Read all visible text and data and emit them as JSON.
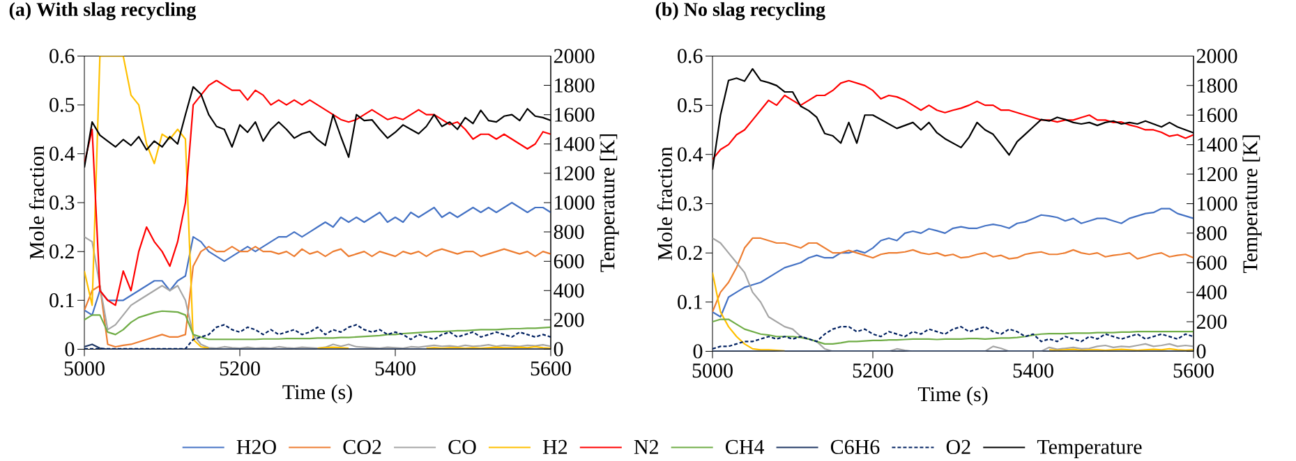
{
  "chart_data": [
    {
      "type": "line",
      "title": "(a) With slag recycling",
      "xlabel": "Time (s)",
      "ylabel": "Mole fraction",
      "y2label": "Temperature [K]",
      "xlim": [
        5000,
        5600
      ],
      "xticks": [
        5000,
        5200,
        5400,
        5600
      ],
      "ylim": [
        0,
        0.6
      ],
      "yticks": [
        0,
        0.1,
        0.2,
        0.3,
        0.4,
        0.5,
        0.6
      ],
      "y2lim": [
        0,
        2000
      ],
      "y2ticks": [
        0,
        200,
        400,
        600,
        800,
        1000,
        1200,
        1400,
        1600,
        1800,
        2000
      ],
      "legend": "bottom",
      "x": [
        5000,
        5010,
        5020,
        5030,
        5040,
        5050,
        5060,
        5070,
        5080,
        5090,
        5100,
        5110,
        5120,
        5130,
        5140,
        5150,
        5160,
        5170,
        5180,
        5190,
        5200,
        5210,
        5220,
        5230,
        5240,
        5250,
        5260,
        5270,
        5280,
        5290,
        5300,
        5310,
        5320,
        5330,
        5340,
        5350,
        5360,
        5370,
        5380,
        5390,
        5400,
        5410,
        5420,
        5430,
        5440,
        5450,
        5460,
        5470,
        5480,
        5490,
        5500,
        5510,
        5520,
        5530,
        5540,
        5550,
        5560,
        5570,
        5580,
        5590,
        5600
      ],
      "series": [
        {
          "name": "H2O",
          "color": "#4472c4",
          "values": [
            0.08,
            0.07,
            0.12,
            0.1,
            0.1,
            0.1,
            0.11,
            0.12,
            0.13,
            0.14,
            0.14,
            0.12,
            0.14,
            0.15,
            0.23,
            0.22,
            0.2,
            0.19,
            0.18,
            0.19,
            0.2,
            0.21,
            0.2,
            0.21,
            0.22,
            0.23,
            0.23,
            0.24,
            0.23,
            0.24,
            0.25,
            0.26,
            0.25,
            0.27,
            0.26,
            0.27,
            0.26,
            0.27,
            0.28,
            0.26,
            0.27,
            0.26,
            0.28,
            0.27,
            0.28,
            0.29,
            0.27,
            0.28,
            0.27,
            0.28,
            0.29,
            0.28,
            0.29,
            0.28,
            0.29,
            0.3,
            0.29,
            0.28,
            0.29,
            0.29,
            0.28
          ]
        },
        {
          "name": "CO2",
          "color": "#ed7d31",
          "values": [
            0.08,
            0.12,
            0.13,
            0.01,
            0.005,
            0.008,
            0.01,
            0.015,
            0.02,
            0.025,
            0.03,
            0.025,
            0.025,
            0.03,
            0.17,
            0.2,
            0.21,
            0.2,
            0.2,
            0.21,
            0.2,
            0.2,
            0.21,
            0.2,
            0.2,
            0.195,
            0.2,
            0.19,
            0.205,
            0.195,
            0.2,
            0.19,
            0.2,
            0.205,
            0.19,
            0.195,
            0.2,
            0.19,
            0.2,
            0.195,
            0.19,
            0.2,
            0.195,
            0.2,
            0.19,
            0.2,
            0.205,
            0.2,
            0.195,
            0.2,
            0.2,
            0.19,
            0.195,
            0.2,
            0.205,
            0.2,
            0.195,
            0.2,
            0.19,
            0.2,
            0.195
          ]
        },
        {
          "name": "CO",
          "color": "#a5a5a5",
          "values": [
            0.23,
            0.22,
            0.13,
            0.04,
            0.05,
            0.07,
            0.09,
            0.1,
            0.11,
            0.12,
            0.13,
            0.12,
            0.13,
            0.1,
            0.03,
            0.01,
            0.003,
            0.002,
            0.005,
            0.003,
            0.002,
            0.004,
            0.002,
            0.003,
            0.002,
            0.005,
            0.003,
            0.002,
            0.004,
            0.003,
            0.002,
            0.004,
            0.01,
            0.006,
            0.01,
            0.005,
            0.004,
            0.003,
            0.002,
            0.004,
            0.003,
            0.002,
            0.005,
            0.004,
            0.006,
            0.008,
            0.006,
            0.007,
            0.005,
            0.008,
            0.006,
            0.007,
            0.009,
            0.006,
            0.008,
            0.007,
            0.006,
            0.008,
            0.007,
            0.009,
            0.006
          ]
        },
        {
          "name": "H2",
          "color": "#ffc000",
          "values": [
            0.16,
            0.09,
            0.6,
            0.6,
            0.6,
            0.6,
            0.52,
            0.5,
            0.42,
            0.38,
            0.44,
            0.43,
            0.45,
            0.43,
            0.02,
            0.005,
            0.002,
            null,
            null,
            null,
            null,
            null,
            null,
            null,
            null,
            null,
            null,
            null,
            null,
            null,
            0.002,
            0.003,
            0.004,
            0.003,
            0.002,
            null,
            null,
            null,
            null,
            null,
            null,
            null,
            null,
            null,
            0.002,
            0.003,
            0.002,
            0.003,
            0.003,
            0.002,
            0.003,
            0.002,
            0.003,
            0.004,
            0.003,
            0.003,
            0.004,
            0.003,
            0.005,
            0.003,
            0.002
          ]
        },
        {
          "name": "N2",
          "color": "#ff0000",
          "values": [
            0.38,
            0.45,
            0.12,
            0.1,
            0.09,
            0.16,
            0.12,
            0.2,
            0.25,
            0.22,
            0.2,
            0.17,
            0.22,
            0.3,
            0.5,
            0.52,
            0.54,
            0.55,
            0.54,
            0.53,
            0.53,
            0.51,
            0.53,
            0.52,
            0.5,
            0.51,
            0.5,
            0.51,
            0.5,
            0.51,
            0.5,
            0.49,
            0.48,
            0.47,
            0.465,
            0.47,
            0.48,
            0.49,
            0.48,
            0.47,
            0.475,
            0.47,
            0.48,
            0.49,
            0.48,
            0.48,
            0.47,
            0.46,
            0.465,
            0.45,
            0.43,
            0.44,
            0.44,
            0.43,
            0.44,
            0.43,
            0.42,
            0.41,
            0.42,
            0.445,
            0.44
          ]
        },
        {
          "name": "CH4",
          "color": "#70ad47",
          "values": [
            0.06,
            0.07,
            0.07,
            0.035,
            0.03,
            0.04,
            0.055,
            0.065,
            0.07,
            0.075,
            0.078,
            0.077,
            0.076,
            0.07,
            0.03,
            0.025,
            0.02,
            0.02,
            0.02,
            0.02,
            0.02,
            0.02,
            0.02,
            0.021,
            0.021,
            0.021,
            0.022,
            0.022,
            0.022,
            0.022,
            0.023,
            0.023,
            0.023,
            0.024,
            0.024,
            0.025,
            0.026,
            0.027,
            0.028,
            0.03,
            0.03,
            0.032,
            0.033,
            0.034,
            0.035,
            0.036,
            0.036,
            0.037,
            0.038,
            0.038,
            0.039,
            0.04,
            0.04,
            0.04,
            0.041,
            0.042,
            0.042,
            0.043,
            0.043,
            0.044,
            0.045
          ]
        },
        {
          "name": "C6H6",
          "color": "#203864",
          "x": [
            5000,
            5010,
            5020,
            5030,
            5100,
            5200,
            5300,
            5400,
            5500,
            5600
          ],
          "values": [
            0.005,
            0.01,
            0.002,
            0,
            0,
            0,
            0,
            0,
            0,
            0
          ]
        },
        {
          "name": "O2",
          "color": "#002060",
          "line_style": "dashed",
          "values": [
            0.001,
            0.001,
            0.001,
            0.001,
            0.001,
            0.001,
            0.001,
            0.001,
            0.001,
            0.001,
            0.001,
            0.001,
            0.001,
            0.001,
            0.02,
            0.025,
            0.03,
            0.045,
            0.05,
            0.04,
            0.035,
            0.045,
            0.04,
            0.03,
            0.04,
            0.03,
            0.035,
            0.04,
            0.03,
            0.035,
            0.045,
            0.03,
            0.04,
            0.035,
            0.045,
            0.05,
            0.04,
            0.035,
            0.04,
            0.03,
            0.035,
            0.03,
            0.02,
            0.03,
            0.025,
            0.02,
            0.03,
            0.035,
            0.025,
            0.03,
            0.035,
            0.025,
            0.03,
            0.035,
            0.03,
            0.025,
            0.035,
            0.03,
            0.025,
            0.03,
            0.025
          ]
        },
        {
          "name": "Temperature",
          "color": "#000000",
          "axis": "y2",
          "values": [
            1240,
            1550,
            1460,
            1420,
            1380,
            1430,
            1390,
            1450,
            1360,
            1420,
            1380,
            1450,
            1400,
            1600,
            1790,
            1740,
            1600,
            1520,
            1500,
            1380,
            1530,
            1480,
            1550,
            1420,
            1500,
            1550,
            1500,
            1440,
            1470,
            1485,
            1430,
            1390,
            1600,
            1450,
            1310,
            1600,
            1560,
            1565,
            1500,
            1440,
            1480,
            1530,
            1500,
            1470,
            1520,
            1600,
            1520,
            1550,
            1500,
            1580,
            1540,
            1630,
            1560,
            1550,
            1590,
            1600,
            1560,
            1640,
            1590,
            1580,
            1560
          ]
        }
      ]
    },
    {
      "type": "line",
      "title": "(b) No slag recycling",
      "xlabel": "Time (s)",
      "ylabel": "Mole fraction",
      "y2label": "Temperature [K]",
      "xlim": [
        5000,
        5600
      ],
      "xticks": [
        5000,
        5200,
        5400,
        5600
      ],
      "ylim": [
        0,
        0.6
      ],
      "yticks": [
        0,
        0.1,
        0.2,
        0.3,
        0.4,
        0.5,
        0.6
      ],
      "y2lim": [
        0,
        2000
      ],
      "y2ticks": [
        0,
        200,
        400,
        600,
        800,
        1000,
        1200,
        1400,
        1600,
        1800,
        2000
      ],
      "x": [
        5000,
        5010,
        5020,
        5030,
        5040,
        5050,
        5060,
        5070,
        5080,
        5090,
        5100,
        5110,
        5120,
        5130,
        5140,
        5150,
        5160,
        5170,
        5180,
        5190,
        5200,
        5210,
        5220,
        5230,
        5240,
        5250,
        5260,
        5270,
        5280,
        5290,
        5300,
        5310,
        5320,
        5330,
        5340,
        5350,
        5360,
        5370,
        5380,
        5390,
        5400,
        5410,
        5420,
        5430,
        5440,
        5450,
        5460,
        5470,
        5480,
        5490,
        5500,
        5510,
        5520,
        5530,
        5540,
        5550,
        5560,
        5570,
        5580,
        5590,
        5600
      ],
      "series": [
        {
          "color": "#4472c4",
          "values": [
            0.08,
            0.07,
            0.11,
            0.12,
            0.13,
            0.135,
            0.14,
            0.15,
            0.16,
            0.17,
            0.175,
            0.18,
            0.19,
            0.195,
            0.19,
            0.19,
            0.2,
            0.2,
            0.205,
            0.2,
            0.21,
            0.225,
            0.23,
            0.225,
            0.24,
            0.244,
            0.24,
            0.249,
            0.245,
            0.24,
            0.25,
            0.253,
            0.25,
            0.25,
            0.255,
            0.258,
            0.255,
            0.25,
            0.26,
            0.263,
            0.27,
            0.277,
            0.275,
            0.272,
            0.265,
            0.27,
            0.26,
            0.265,
            0.27,
            0.27,
            0.265,
            0.26,
            0.27,
            0.275,
            0.28,
            0.282,
            0.29,
            0.29,
            0.28,
            0.275,
            0.27
          ]
        },
        {
          "color": "#ed7d31",
          "values": [
            0.08,
            0.12,
            0.14,
            0.17,
            0.21,
            0.23,
            0.23,
            0.225,
            0.22,
            0.22,
            0.215,
            0.21,
            0.22,
            0.22,
            0.21,
            0.2,
            0.2,
            0.205,
            0.2,
            0.195,
            0.19,
            0.197,
            0.2,
            0.2,
            0.202,
            0.206,
            0.2,
            0.197,
            0.2,
            0.194,
            0.197,
            0.19,
            0.192,
            0.197,
            0.2,
            0.192,
            0.195,
            0.188,
            0.19,
            0.197,
            0.2,
            0.202,
            0.197,
            0.197,
            0.2,
            0.206,
            0.2,
            0.197,
            0.2,
            0.192,
            0.195,
            0.197,
            0.2,
            0.188,
            0.192,
            0.197,
            0.2,
            0.192,
            0.195,
            0.197,
            0.19
          ]
        },
        {
          "color": "#a5a5a5",
          "values": [
            0.23,
            0.22,
            0.2,
            0.18,
            0.16,
            0.12,
            0.1,
            0.07,
            0.06,
            0.05,
            0.045,
            0.03,
            0.025,
            0.02,
            0.005,
            0,
            0,
            0,
            0,
            0,
            0,
            0,
            0,
            0.005,
            0.002,
            0,
            0,
            0,
            0,
            0,
            0,
            0,
            0,
            0,
            0,
            0.01,
            0.006,
            0,
            0,
            0,
            0,
            0,
            0.008,
            0.004,
            0.006,
            0.008,
            0.005,
            0.006,
            0.01,
            0.012,
            0.008,
            0.01,
            0.009,
            0.012,
            0.015,
            0.01,
            0.012,
            0.015,
            0.01,
            0.012,
            0.01
          ]
        },
        {
          "color": "#ffc000",
          "values": [
            0.16,
            0.08,
            0.05,
            0.03,
            0.015,
            0.005,
            0.003,
            0.003,
            0.002,
            0.001,
            null,
            null,
            null,
            null,
            null,
            null,
            null,
            null,
            null,
            null,
            null,
            null,
            null,
            null,
            null,
            null,
            null,
            null,
            null,
            null,
            null,
            null,
            null,
            null,
            null,
            null,
            null,
            null,
            null,
            null,
            null,
            null,
            0.003,
            0.002,
            0.003,
            0.004,
            0.002,
            0.003,
            0.003,
            0.002,
            0.003,
            0.004,
            0.003,
            0.002,
            0.003,
            0.004,
            0.003,
            0.005,
            0.003,
            0.002,
            0.003
          ]
        },
        {
          "color": "#ff0000",
          "values": [
            0.39,
            0.41,
            0.42,
            0.44,
            0.45,
            0.47,
            0.49,
            0.51,
            0.5,
            0.52,
            0.51,
            0.5,
            0.51,
            0.52,
            0.52,
            0.53,
            0.545,
            0.55,
            0.545,
            0.54,
            0.53,
            0.513,
            0.52,
            0.517,
            0.51,
            0.5,
            0.49,
            0.5,
            0.49,
            0.485,
            0.49,
            0.494,
            0.5,
            0.508,
            0.5,
            0.5,
            0.49,
            0.49,
            0.485,
            0.48,
            0.475,
            0.47,
            0.47,
            0.466,
            0.47,
            0.47,
            0.475,
            0.48,
            0.47,
            0.47,
            0.465,
            0.466,
            0.46,
            0.456,
            0.45,
            0.45,
            0.445,
            0.437,
            0.44,
            0.433,
            0.44
          ]
        },
        {
          "color": "#70ad47",
          "values": [
            0.06,
            0.065,
            0.065,
            0.055,
            0.045,
            0.04,
            0.035,
            0.033,
            0.03,
            0.03,
            0.03,
            0.028,
            0.025,
            0.02,
            0.015,
            0.015,
            0.017,
            0.02,
            0.02,
            0.021,
            0.022,
            0.022,
            0.023,
            0.023,
            0.024,
            0.025,
            0.025,
            0.025,
            0.024,
            0.025,
            0.025,
            0.025,
            0.026,
            0.026,
            0.025,
            0.026,
            0.027,
            0.027,
            0.028,
            0.03,
            0.033,
            0.035,
            0.036,
            0.036,
            0.036,
            0.037,
            0.037,
            0.037,
            0.038,
            0.038,
            0.038,
            0.039,
            0.039,
            0.04,
            0.04,
            0.04,
            0.04,
            0.04,
            0.04,
            0.04,
            0.04
          ]
        },
        {
          "color": "#203864",
          "x": [
            5000,
            5100,
            5200,
            5300,
            5400,
            5500,
            5600
          ],
          "values": [
            0,
            0,
            0,
            0,
            0,
            0,
            0
          ]
        },
        {
          "color": "#002060",
          "line_style": "dashed",
          "values": [
            0.005,
            0.01,
            0.01,
            0.015,
            0.02,
            0.02,
            0.025,
            0.03,
            0.025,
            0.03,
            0.025,
            0.03,
            0.025,
            0.02,
            0.035,
            0.045,
            0.05,
            0.05,
            0.04,
            0.045,
            0.035,
            0.03,
            0.04,
            0.035,
            0.03,
            0.04,
            0.035,
            0.045,
            0.04,
            0.035,
            0.045,
            0.05,
            0.04,
            0.045,
            0.05,
            0.04,
            0.035,
            0.045,
            0.04,
            0.03,
            0.035,
            0.02,
            0.025,
            0.02,
            0.03,
            0.025,
            0.02,
            0.03,
            0.025,
            0.035,
            0.03,
            0.025,
            0.03,
            0.035,
            0.025,
            0.03,
            0.035,
            0.03,
            0.025,
            0.035,
            0.03
          ]
        },
        {
          "color": "#000000",
          "axis": "y2",
          "values": [
            1230,
            1600,
            1835,
            1850,
            1830,
            1913,
            1835,
            1820,
            1800,
            1757,
            1757,
            1660,
            1630,
            1585,
            1475,
            1460,
            1410,
            1550,
            1410,
            1600,
            1600,
            1570,
            1540,
            1510,
            1530,
            1550,
            1500,
            1550,
            1480,
            1440,
            1410,
            1380,
            1450,
            1550,
            1500,
            1470,
            1400,
            1330,
            1420,
            1470,
            1520,
            1570,
            1560,
            1585,
            1570,
            1550,
            1540,
            1550,
            1530,
            1550,
            1560,
            1540,
            1550,
            1540,
            1560,
            1540,
            1520,
            1550,
            1520,
            1500,
            1480
          ]
        }
      ]
    }
  ]
}
